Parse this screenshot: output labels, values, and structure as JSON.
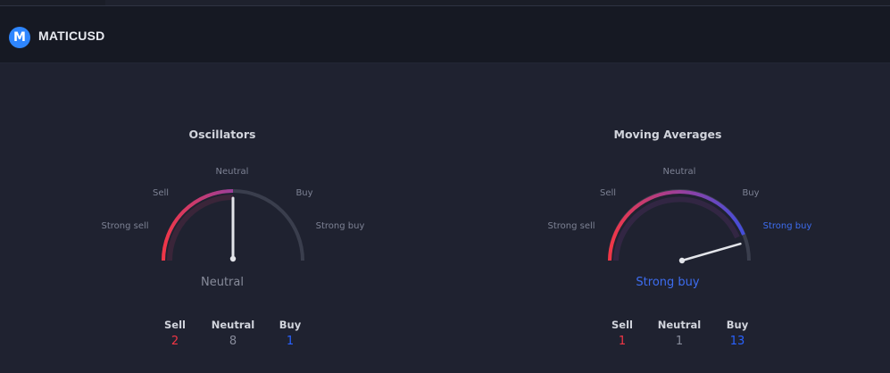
{
  "header": {
    "symbol": "MATICUSD",
    "logo_glyph": "M",
    "logo_color": "#2e86ff"
  },
  "colors": {
    "sell": "#f23645",
    "buy": "#2962ff",
    "neutral": "#878b9a",
    "active_label": "#3d6df0"
  },
  "gauge_labels": {
    "strong_sell": "Strong sell",
    "sell": "Sell",
    "neutral": "Neutral",
    "buy": "Buy",
    "strong_buy": "Strong buy"
  },
  "count_labels": {
    "sell": "Sell",
    "neutral": "Neutral",
    "buy": "Buy"
  },
  "oscillators": {
    "title": "Oscillators",
    "summary": "Neutral",
    "needle_level": 0.0,
    "counts": {
      "sell": "2",
      "neutral": "8",
      "buy": "1"
    }
  },
  "moving_averages": {
    "title": "Moving Averages",
    "summary": "Strong buy",
    "needle_level": 0.89,
    "counts": {
      "sell": "1",
      "neutral": "1",
      "buy": "13"
    }
  }
}
